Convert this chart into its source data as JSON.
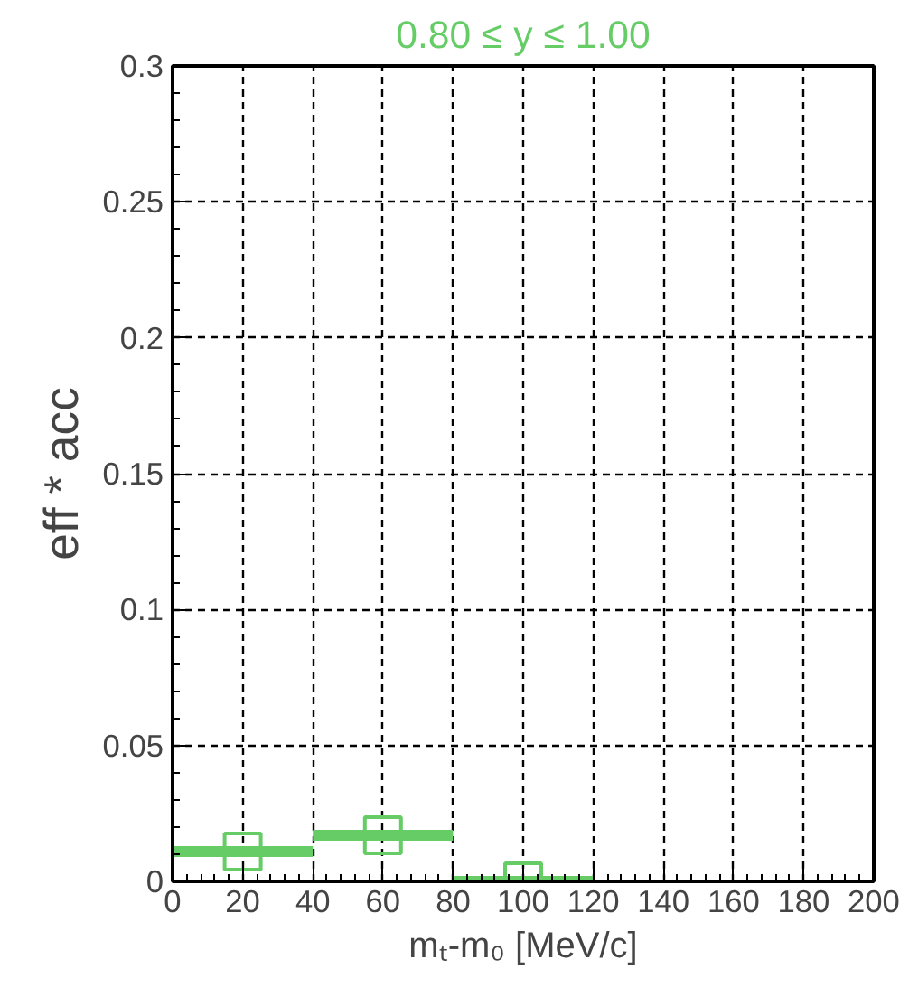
{
  "chart_data": {
    "type": "scatter",
    "title": "0.80 ≤ y ≤ 1.00",
    "xlabel": "mₜ-m₀ [MeV/c]",
    "ylabel": "eff * acc",
    "x": [
      20,
      60,
      100
    ],
    "values": [
      0.011,
      0.017,
      0.0
    ],
    "xerrors": [
      20,
      20,
      20
    ],
    "color": "#66cc66",
    "marker": "square",
    "xlim": [
      0,
      200
    ],
    "ylim": [
      0,
      0.3
    ],
    "xticks": [
      0,
      20,
      40,
      60,
      80,
      100,
      120,
      140,
      160,
      180,
      200
    ],
    "yticks": [
      0,
      0.05,
      0.1,
      0.15,
      0.2,
      0.25,
      0.3
    ],
    "grid": true
  }
}
